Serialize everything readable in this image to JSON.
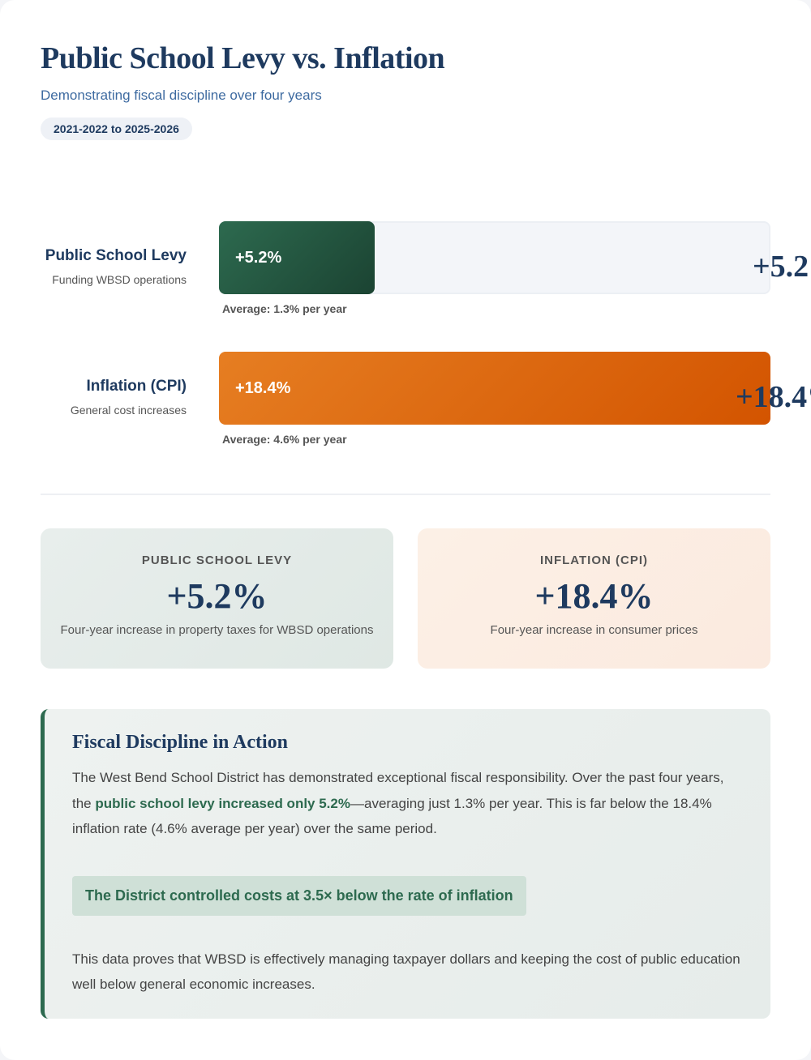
{
  "header": {
    "title": "Public School Levy vs. Inflation",
    "subtitle": "Demonstrating fiscal discipline over four years",
    "badge": "2021-2022 to 2025-2026"
  },
  "chart_data": {
    "type": "bar",
    "orientation": "horizontal",
    "categories": [
      "Public School Levy",
      "Inflation (CPI)"
    ],
    "subtitles": [
      "Funding WBSD operations",
      "General cost increases"
    ],
    "values": [
      5.2,
      18.4
    ],
    "value_labels": [
      "+5.2%",
      "+18.4%"
    ],
    "notes": [
      "Average: 1.3% per year",
      "Average: 4.6% per year"
    ],
    "colors": [
      [
        "#2d6a4f",
        "#1b4332"
      ],
      [
        "#e67e22",
        "#d35400"
      ]
    ],
    "xlim": [
      0,
      18.4
    ]
  },
  "cards": [
    {
      "label": "PUBLIC SCHOOL LEVY",
      "value": "+5.2%",
      "text": "Four-year increase in property taxes for WBSD operations"
    },
    {
      "label": "INFLATION (CPI)",
      "value": "+18.4%",
      "text": "Four-year increase in consumer prices"
    }
  ],
  "callout": {
    "title": "Fiscal Discipline in Action",
    "p1": [
      "The West Bend School District has demonstrated exceptional fiscal responsibility. Over the past four years, the ",
      "public school levy increased only 5.2%",
      "—averaging just 1.3% per year. This is far below the 18.4% inflation rate (4.6% average per year) over the same period."
    ],
    "highlight": "The District controlled costs at 3.5× below the rate of inflation",
    "p2": "This data proves that WBSD is effectively managing taxpayer dollars and keeping the cost of public education well below general economic increases."
  }
}
